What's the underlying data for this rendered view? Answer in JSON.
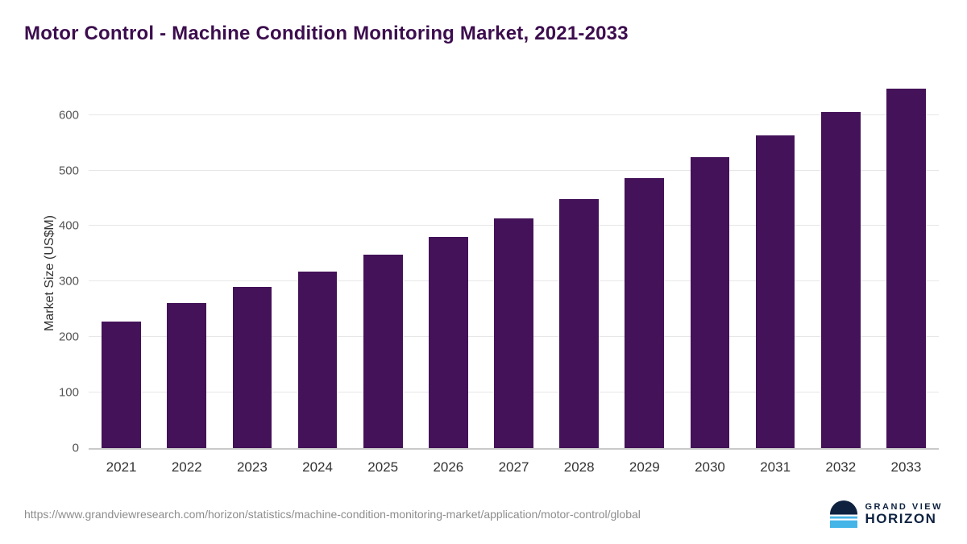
{
  "title": "Motor Control - Machine Condition Monitoring Market, 2021-2033",
  "chart_data": {
    "type": "bar",
    "title": "Motor Control - Machine Condition Monitoring Market, 2021-2033",
    "xlabel": "",
    "ylabel": "Market Size (US$M)",
    "categories": [
      "2021",
      "2022",
      "2023",
      "2024",
      "2025",
      "2026",
      "2027",
      "2028",
      "2029",
      "2030",
      "2031",
      "2032",
      "2033"
    ],
    "values": [
      228,
      261,
      291,
      318,
      349,
      380,
      414,
      449,
      487,
      524,
      564,
      605,
      648
    ],
    "ylim": [
      0,
      662
    ],
    "yticks": [
      0,
      100,
      200,
      300,
      400,
      500,
      600
    ],
    "grid": "horizontal",
    "legend": "none",
    "bar_color": "#431258"
  },
  "footer": {
    "source_url": "https://www.grandviewresearch.com/horizon/statistics/machine-condition-monitoring-market/application/motor-control/global",
    "brand_line1": "GRAND VIEW",
    "brand_line2": "HORIZON"
  },
  "colors": {
    "title": "#3c0d4e",
    "bar": "#431258",
    "gridline": "#e7e7e7",
    "axis": "#c9c9c9",
    "tick_text": "#555555",
    "brand_navy": "#0e2240",
    "brand_blue": "#45b5e8"
  }
}
